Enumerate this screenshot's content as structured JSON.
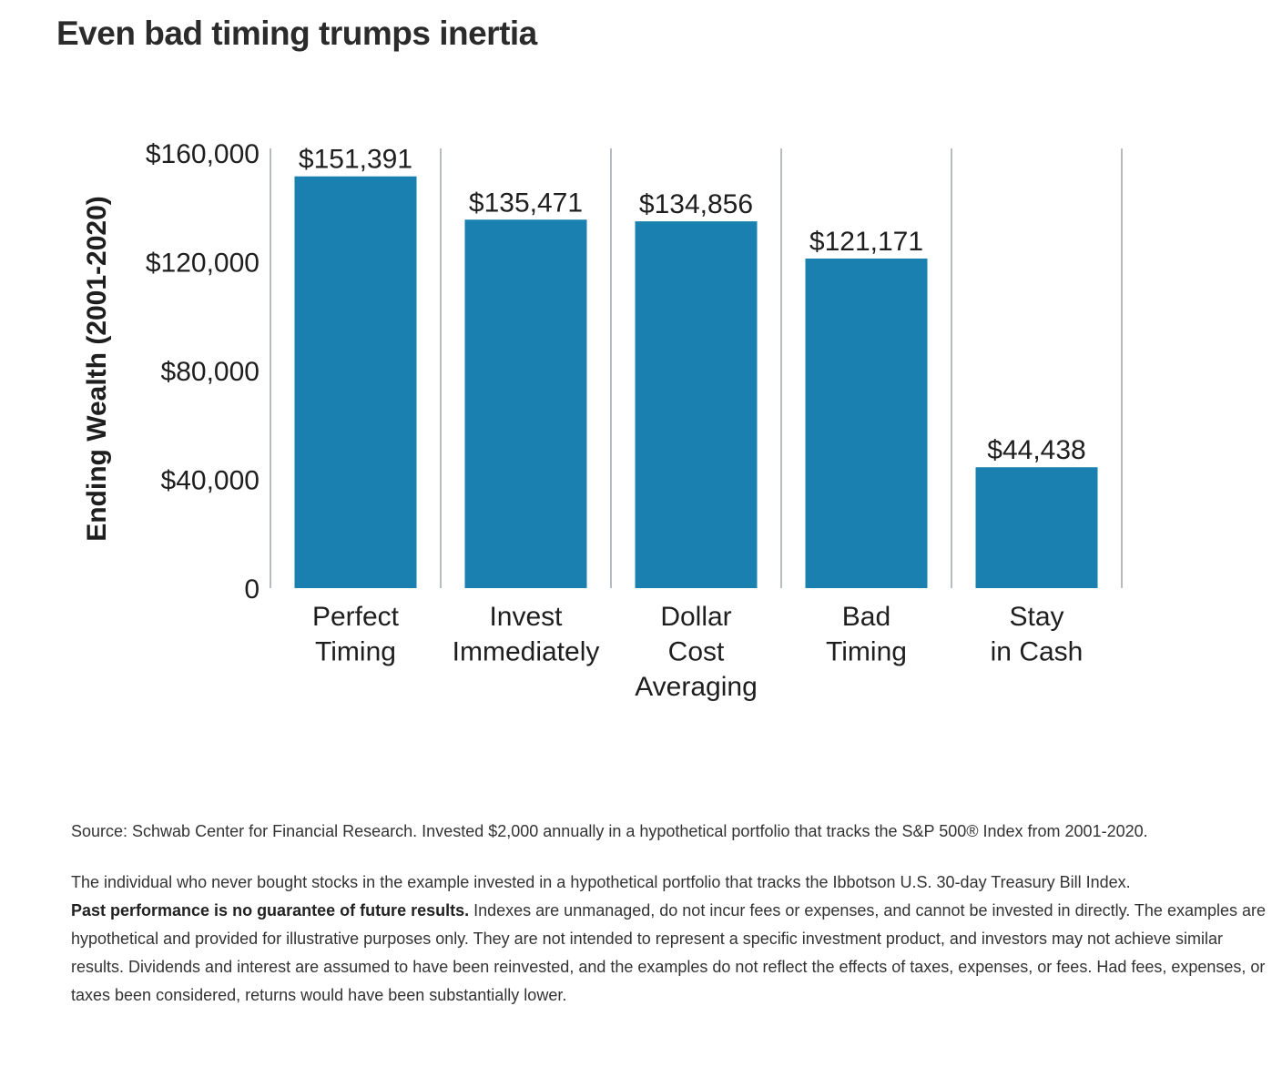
{
  "chart_data": {
    "type": "bar",
    "title": "Even bad timing trumps inertia",
    "y_label": "Ending Wealth (2001-2020)",
    "categories": [
      [
        "Perfect",
        "Timing"
      ],
      [
        "Invest",
        "Immediately"
      ],
      [
        "Dollar",
        "Cost",
        "Averaging"
      ],
      [
        "Bad",
        "Timing"
      ],
      [
        "Stay",
        "in Cash"
      ]
    ],
    "values": [
      151391,
      135471,
      134856,
      121171,
      44438
    ],
    "value_labels": [
      "$151,391",
      "$135,471",
      "$134,856",
      "$121,171",
      "$44,438"
    ],
    "color": "#1a80af",
    "ylim": [
      0,
      160000
    ],
    "yticks": [
      0,
      {
        "value": 40000,
        "label": "$40,000"
      },
      {
        "value": 80000,
        "label": "$80,000"
      },
      {
        "value": 120000,
        "label": "$120,000"
      },
      {
        "value": 160000,
        "label": "$160,000"
      }
    ]
  },
  "notes": {
    "source": "Source: Schwab Center for Financial Research. Invested $2,000 annually in a hypothetical portfolio that tracks the S&P 500® Index from 2001-2020.",
    "disclaimer_intro": "The individual who never bought stocks in the example invested in a hypothetical portfolio that tracks the Ibbotson U.S. 30-day Treasury Bill Index.",
    "disclaimer_bold": "Past performance is no guarantee of future results.",
    "disclaimer_rest": "Indexes are unmanaged, do not incur fees or expenses, and cannot be invested in directly. The examples are hypothetical and provided for illustrative purposes only. They are not intended to represent a specific investment product, and investors may not achieve similar results. Dividends and interest are assumed to have been reinvested, and the examples do not reflect the effects of taxes, expenses, or fees. Had fees, expenses, or taxes been considered, returns would have been substantially lower."
  }
}
